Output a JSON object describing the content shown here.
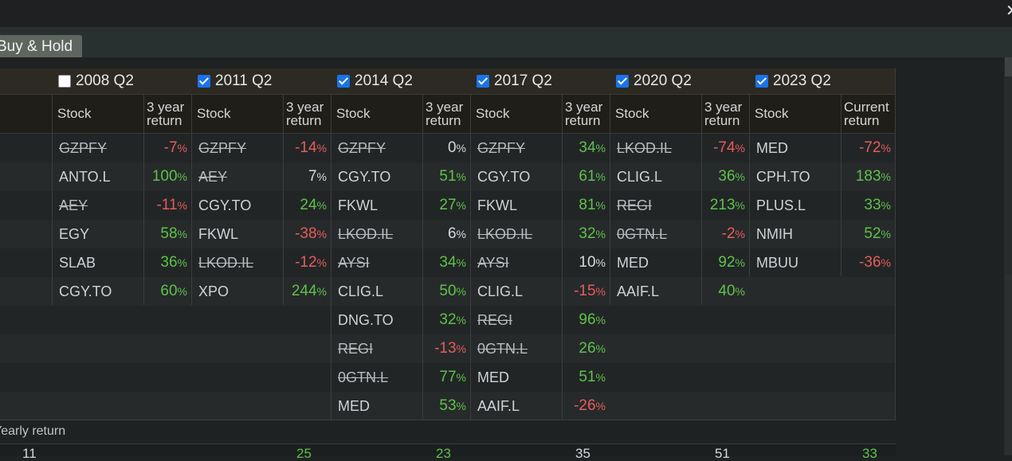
{
  "window": {
    "close_glyph": "✕"
  },
  "tab": {
    "label": "Buy & Hold"
  },
  "periods": [
    {
      "label": "2008 Q2",
      "checked": false,
      "stock_header": "Stock",
      "return_header_1": "3 year",
      "return_header_2": "return",
      "rows": [
        {
          "stock": "GZPFY",
          "struck": true,
          "value": "-7",
          "sign": "neg"
        },
        {
          "stock": "ANTO.L",
          "struck": false,
          "value": "100",
          "sign": "pos"
        },
        {
          "stock": "AEY",
          "struck": true,
          "value": "-11",
          "sign": "neg"
        },
        {
          "stock": "EGY",
          "struck": false,
          "value": "58",
          "sign": "pos"
        },
        {
          "stock": "SLAB",
          "struck": false,
          "value": "36",
          "sign": "pos"
        },
        {
          "stock": "CGY.TO",
          "struck": false,
          "value": "60",
          "sign": "pos"
        }
      ]
    },
    {
      "label": "2011 Q2",
      "checked": true,
      "stock_header": "Stock",
      "return_header_1": "3 year",
      "return_header_2": "return",
      "rows": [
        {
          "stock": "GZPFY",
          "struck": true,
          "value": "-14",
          "sign": "neg"
        },
        {
          "stock": "AEY",
          "struck": true,
          "value": "7",
          "sign": "neu"
        },
        {
          "stock": "CGY.TO",
          "struck": false,
          "value": "24",
          "sign": "pos"
        },
        {
          "stock": "FKWL",
          "struck": false,
          "value": "-38",
          "sign": "neg"
        },
        {
          "stock": "LKOD.IL",
          "struck": true,
          "value": "-12",
          "sign": "neg"
        },
        {
          "stock": "XPO",
          "struck": false,
          "value": "244",
          "sign": "pos"
        }
      ]
    },
    {
      "label": "2014 Q2",
      "checked": true,
      "stock_header": "Stock",
      "return_header_1": "3 year",
      "return_header_2": "return",
      "rows": [
        {
          "stock": "GZPFY",
          "struck": true,
          "value": "0",
          "sign": "zero"
        },
        {
          "stock": "CGY.TO",
          "struck": false,
          "value": "51",
          "sign": "pos"
        },
        {
          "stock": "FKWL",
          "struck": false,
          "value": "27",
          "sign": "pos"
        },
        {
          "stock": "LKOD.IL",
          "struck": true,
          "value": "6",
          "sign": "neu"
        },
        {
          "stock": "AYSI",
          "struck": true,
          "value": "34",
          "sign": "pos"
        },
        {
          "stock": "CLIG.L",
          "struck": false,
          "value": "50",
          "sign": "pos"
        },
        {
          "stock": "DNG.TO",
          "struck": false,
          "value": "32",
          "sign": "pos"
        },
        {
          "stock": "REGI",
          "struck": true,
          "value": "-13",
          "sign": "neg"
        },
        {
          "stock": "0GTN.L",
          "struck": true,
          "value": "77",
          "sign": "pos"
        },
        {
          "stock": "MED",
          "struck": false,
          "value": "53",
          "sign": "pos"
        }
      ]
    },
    {
      "label": "2017 Q2",
      "checked": true,
      "stock_header": "Stock",
      "return_header_1": "3 year",
      "return_header_2": "return",
      "rows": [
        {
          "stock": "GZPFY",
          "struck": true,
          "value": "34",
          "sign": "pos"
        },
        {
          "stock": "CGY.TO",
          "struck": false,
          "value": "61",
          "sign": "pos"
        },
        {
          "stock": "FKWL",
          "struck": false,
          "value": "81",
          "sign": "pos"
        },
        {
          "stock": "LKOD.IL",
          "struck": true,
          "value": "32",
          "sign": "pos"
        },
        {
          "stock": "AYSI",
          "struck": true,
          "value": "10",
          "sign": "neu"
        },
        {
          "stock": "CLIG.L",
          "struck": false,
          "value": "-15",
          "sign": "neg"
        },
        {
          "stock": "REGI",
          "struck": true,
          "value": "96",
          "sign": "pos"
        },
        {
          "stock": "0GTN.L",
          "struck": true,
          "value": "26",
          "sign": "pos"
        },
        {
          "stock": "MED",
          "struck": false,
          "value": "51",
          "sign": "pos"
        },
        {
          "stock": "AAIF.L",
          "struck": false,
          "value": "-26",
          "sign": "neg"
        }
      ]
    },
    {
      "label": "2020 Q2",
      "checked": true,
      "stock_header": "Stock",
      "return_header_1": "3 year",
      "return_header_2": "return",
      "rows": [
        {
          "stock": "LKOD.IL",
          "struck": true,
          "value": "-74",
          "sign": "neg"
        },
        {
          "stock": "CLIG.L",
          "struck": false,
          "value": "36",
          "sign": "pos"
        },
        {
          "stock": "REGI",
          "struck": true,
          "value": "213",
          "sign": "pos"
        },
        {
          "stock": "0GTN.L",
          "struck": true,
          "value": "-2",
          "sign": "neg"
        },
        {
          "stock": "MED",
          "struck": false,
          "value": "92",
          "sign": "pos"
        },
        {
          "stock": "AAIF.L",
          "struck": false,
          "value": "40",
          "sign": "pos"
        }
      ]
    },
    {
      "label": "2023 Q2",
      "checked": true,
      "stock_header": "Stock",
      "return_header_1": "Current",
      "return_header_2": "return",
      "rows": [
        {
          "stock": "MED",
          "struck": false,
          "value": "-72",
          "sign": "neg"
        },
        {
          "stock": "CPH.TO",
          "struck": false,
          "value": "183",
          "sign": "pos"
        },
        {
          "stock": "PLUS.L",
          "struck": false,
          "value": "33",
          "sign": "pos"
        },
        {
          "stock": "NMIH",
          "struck": false,
          "value": "52",
          "sign": "pos"
        },
        {
          "stock": "MBUU",
          "struck": false,
          "value": "-36",
          "sign": "neg"
        }
      ]
    }
  ],
  "pct_symbol": "%",
  "footer": {
    "yearly_label": "Yearly return",
    "partial_values": [
      {
        "value": "11",
        "sign": "neu"
      },
      {
        "value": "25",
        "sign": "pos"
      },
      {
        "value": "23",
        "sign": "pos"
      },
      {
        "value": "35",
        "sign": "neu"
      },
      {
        "value": "51",
        "sign": "neu"
      },
      {
        "value": "33",
        "sign": "pos"
      }
    ]
  },
  "colors": {
    "positive": "#5ec24a",
    "negative": "#e45c5c",
    "checkbox_accent": "#1a73e8",
    "tab_bg": "#5d675f"
  }
}
